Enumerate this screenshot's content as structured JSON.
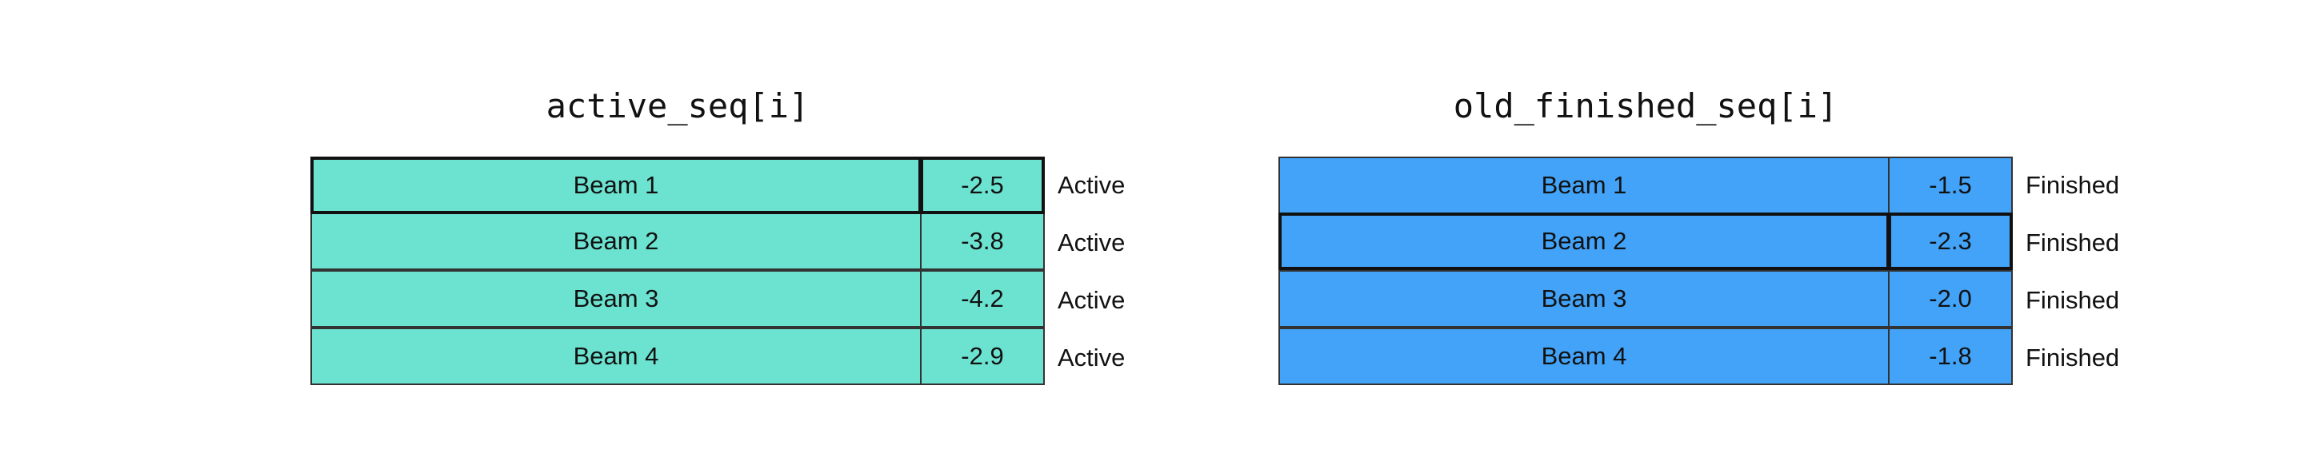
{
  "active_panel": {
    "title": "active_seq[i]",
    "fill_color": "#6ce3d0",
    "highlighted_row": 0,
    "rows": [
      {
        "name": "Beam 1",
        "score": "-2.5",
        "status": "Active"
      },
      {
        "name": "Beam 2",
        "score": "-3.8",
        "status": "Active"
      },
      {
        "name": "Beam 3",
        "score": "-4.2",
        "status": "Active"
      },
      {
        "name": "Beam 4",
        "score": "-2.9",
        "status": "Active"
      }
    ]
  },
  "finished_panel": {
    "title": "old_finished_seq[i]",
    "fill_color": "#42a3f8",
    "highlighted_row": 1,
    "rows": [
      {
        "name": "Beam 1",
        "score": "-1.5",
        "status": "Finished"
      },
      {
        "name": "Beam 2",
        "score": "-2.3",
        "status": "Finished"
      },
      {
        "name": "Beam 3",
        "score": "-2.0",
        "status": "Finished"
      },
      {
        "name": "Beam 4",
        "score": "-1.8",
        "status": "Finished"
      }
    ]
  }
}
